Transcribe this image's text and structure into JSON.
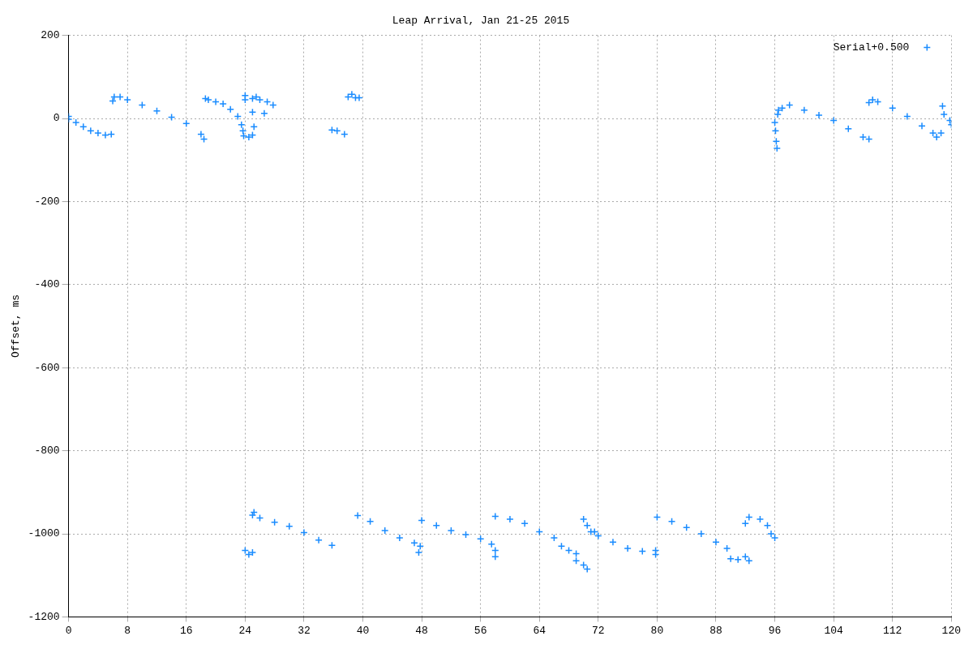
{
  "chart_data": {
    "type": "scatter",
    "title": "Leap Arrival, Jan 21-25 2015",
    "ylabel": "Offset, ms",
    "xlim": [
      0,
      120
    ],
    "xticks": [
      0,
      8,
      16,
      24,
      32,
      40,
      48,
      56,
      64,
      72,
      80,
      88,
      96,
      104,
      112,
      120
    ],
    "ylim": [
      -1200,
      200
    ],
    "yticks": [
      -1200,
      -1000,
      -800,
      -600,
      -400,
      -200,
      0,
      200
    ],
    "grid": true,
    "legend": "top right",
    "marker": "cross",
    "series": [
      {
        "name": "Serial+0.500",
        "color": "#1a8cff",
        "x": [
          0,
          0,
          1,
          2,
          3,
          4,
          5,
          5.8,
          6,
          6.2,
          7,
          8,
          10,
          12,
          14,
          16,
          18,
          18.4,
          18.6,
          19,
          20,
          21,
          22,
          23,
          23.5,
          23.7,
          23.8,
          24,
          24,
          24.5,
          25,
          25,
          25.2,
          26.6,
          25,
          25.5,
          26,
          27,
          27.8,
          35.8,
          36.5,
          37.5,
          38,
          38.5,
          39,
          39.5,
          96,
          96.1,
          96.2,
          96.3,
          96.4,
          96.5,
          97,
          98,
          100,
          102,
          104,
          106,
          108,
          108.8,
          108.8,
          109.3,
          110,
          112,
          114,
          116,
          117.5,
          118,
          118.6,
          118.8,
          119,
          119.8,
          120,
          24,
          24.5,
          25,
          25,
          25.2,
          26,
          28,
          30,
          32,
          34,
          35.8,
          39.3,
          41,
          43,
          45,
          47,
          47.8,
          47.6,
          48,
          50,
          52,
          54,
          56,
          57.5,
          58,
          58,
          58,
          60,
          62,
          64,
          66,
          67,
          68,
          69,
          69,
          70,
          70.5,
          70,
          70.5,
          71,
          71.5,
          72,
          74,
          76,
          78,
          79.8,
          79.8,
          80,
          82,
          84,
          86,
          88,
          89.5,
          90,
          91,
          92,
          92.5,
          92,
          92.5,
          94,
          95,
          95.5,
          96
        ],
        "values": [
          -2,
          5,
          -10,
          -20,
          -30,
          -35,
          -40,
          -38,
          42,
          52,
          52,
          45,
          32,
          18,
          3,
          -12,
          -38,
          -50,
          48,
          45,
          40,
          35,
          22,
          5,
          -15,
          -30,
          -42,
          55,
          45,
          -45,
          -40,
          15,
          -20,
          12,
          48,
          52,
          45,
          40,
          32,
          -28,
          -30,
          -38,
          52,
          58,
          50,
          50,
          -10,
          -30,
          -55,
          -72,
          10,
          20,
          25,
          32,
          20,
          8,
          -5,
          -25,
          -45,
          -50,
          38,
          45,
          40,
          25,
          5,
          -18,
          -35,
          -45,
          -35,
          30,
          10,
          -5,
          -15,
          -1040,
          -1050,
          -1045,
          -955,
          -948,
          -962,
          -972,
          -982,
          -997,
          -1015,
          -1028,
          -956,
          -970,
          -992,
          -1010,
          -1022,
          -1030,
          -1045,
          -968,
          -980,
          -992,
          -1002,
          -1012,
          -1025,
          -1040,
          -1055,
          -958,
          -965,
          -975,
          -995,
          -1010,
          -1030,
          -1040,
          -1048,
          -1065,
          -1075,
          -1085,
          -965,
          -980,
          -995,
          -995,
          -1005,
          -1020,
          -1035,
          -1042,
          -1050,
          -1040,
          -960,
          -970,
          -985,
          -1000,
          -1020,
          -1035,
          -1060,
          -1062,
          -1055,
          -1065,
          -975,
          -960,
          -965,
          -980,
          -1000,
          -1010
        ]
      }
    ]
  }
}
